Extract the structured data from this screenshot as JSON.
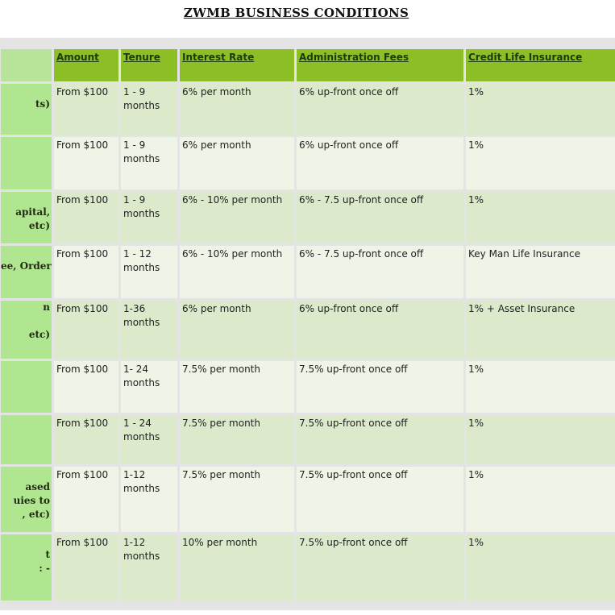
{
  "title": "ZWMB BUSINESS CONDITIONS",
  "columns": [
    "",
    "Amount",
    "Tenure",
    "Interest Rate",
    "Administration Fees",
    "Credit Life Insurance"
  ],
  "rows": [
    {
      "label_lines": [
        "",
        "ts)"
      ],
      "amount": "From $100",
      "tenure": "1 - 9 months",
      "interest": "6% per month",
      "admin": "6% up-front once off",
      "insurance": "1%"
    },
    {
      "label_lines": [],
      "amount": "From $100",
      "tenure": "1 - 9 months",
      "interest": "6% per month",
      "admin": "6% up-front once off",
      "insurance": "1%"
    },
    {
      "label_lines": [
        "",
        "apital,",
        "etc)"
      ],
      "amount": "From $100",
      "tenure": "1 - 9 months",
      "interest": "6% - 10% per month",
      "admin": "6% - 7.5 up-front once off",
      "insurance": "1%"
    },
    {
      "label_lines": [
        "",
        "ee, Order"
      ],
      "amount": "From $100",
      "tenure": "1 - 12 months",
      "interest": "6% - 10% per month",
      "admin": "6% - 7.5 up-front once off",
      "insurance": "Key Man Life Insurance"
    },
    {
      "label_lines": [
        "n",
        "",
        "etc)"
      ],
      "amount": "From $100",
      "tenure": "1-36 months",
      "interest": "6% per month",
      "admin": "6% up-front once off",
      "insurance": "1% + Asset Insurance"
    },
    {
      "label_lines": [],
      "amount": "From $100",
      "tenure": "1- 24 months",
      "interest": "7.5% per month",
      "admin": "7.5% up-front once off",
      "insurance": "1%"
    },
    {
      "label_lines": [],
      "amount": "From $100",
      "tenure": "1 - 24 months",
      "interest": "7.5% per month",
      "admin": "7.5% up-front once off",
      "insurance": "1%"
    },
    {
      "label_lines": [
        "",
        "ased",
        "uies to",
        ", etc)"
      ],
      "amount": "From $100",
      "tenure": "1-12 months",
      "interest": "7.5% per month",
      "admin": "7.5% up-front once off",
      "insurance": "1%"
    },
    {
      "label_lines": [
        "",
        "t",
        ": -"
      ],
      "amount": "From $100",
      "tenure": "1-12 months",
      "interest": "10% per month",
      "admin": "7.5% up-front once off",
      "insurance": "1%"
    }
  ],
  "colors": {
    "header": "#8cbf25",
    "label_column": "#b1e690",
    "row_odd": "#dce9cb",
    "row_even": "#eef4e6"
  }
}
